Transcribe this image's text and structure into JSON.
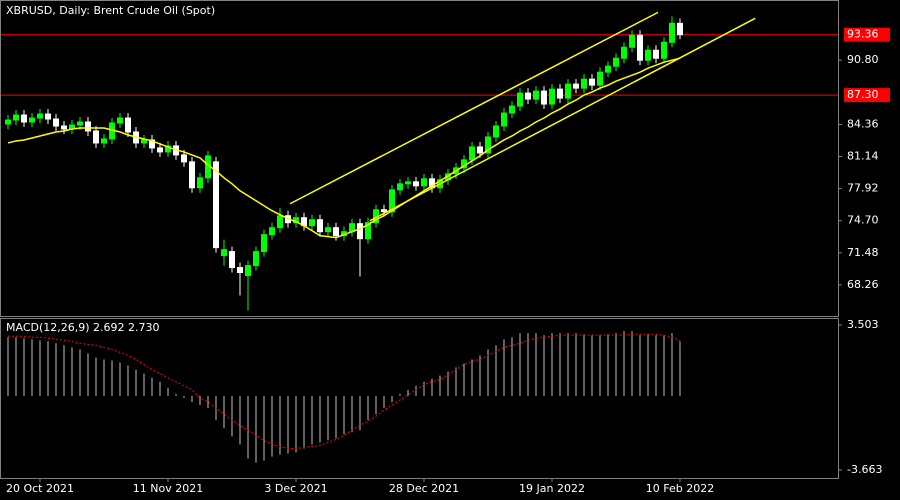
{
  "chart_data": {
    "type": "candlestick",
    "title": "XBRUSD, Daily:  Brent Crude Oil (Spot)",
    "categories": [
      null,
      null,
      null,
      null,
      "20 Oct 2021",
      null,
      null,
      null,
      null,
      null,
      null,
      null,
      null,
      null,
      null,
      null,
      null,
      null,
      null,
      null,
      "11 Nov 2021",
      null,
      null,
      null,
      null,
      null,
      null,
      null,
      null,
      null,
      null,
      null,
      null,
      null,
      null,
      null,
      "3 Dec 2021",
      null,
      null,
      null,
      null,
      null,
      null,
      null,
      null,
      null,
      null,
      null,
      null,
      null,
      null,
      null,
      "28 Dec 2021",
      null,
      null,
      null,
      null,
      null,
      null,
      null,
      null,
      null,
      null,
      null,
      null,
      null,
      null,
      null,
      "19 Jan 2022",
      null,
      null,
      null,
      null,
      null,
      null,
      null,
      null,
      null,
      null,
      null,
      null,
      null,
      null,
      null,
      "10 Feb 2022"
    ],
    "open": [
      84.4,
      84.8,
      85.3,
      84.6,
      85.0,
      85.4,
      84.9,
      84.2,
      83.9,
      84.3,
      84.6,
      83.7,
      82.5,
      82.9,
      84.5,
      85.0,
      83.6,
      82.5,
      82.8,
      82.0,
      81.6,
      82.2,
      81.3,
      80.6,
      78.0,
      79.0,
      80.6,
      71.2,
      71.6,
      70.0,
      69.2,
      70.2,
      71.6,
      73.3,
      74.0,
      75.2,
      74.5,
      75.0,
      74.2,
      74.8,
      73.6,
      74.0,
      73.2,
      73.6,
      74.4,
      72.9,
      74.5,
      75.8,
      75.6,
      77.8,
      78.4,
      78.6,
      78.2,
      78.9,
      78.0,
      78.8,
      79.4,
      80.0,
      80.8,
      82.1,
      81.5,
      83.1,
      84.2,
      85.5,
      86.2,
      87.5,
      86.9,
      87.7,
      86.4,
      87.9,
      87.0,
      88.4,
      88.0,
      88.9,
      88.3,
      89.6,
      90.2,
      91.0,
      92.1,
      93.3,
      90.8,
      91.8,
      91.0,
      92.6,
      94.5
    ],
    "high": [
      85.3,
      85.8,
      85.8,
      85.5,
      85.9,
      85.9,
      85.4,
      84.7,
      84.8,
      85.1,
      85.1,
      84.2,
      83.4,
      85.0,
      85.5,
      85.5,
      84.1,
      83.3,
      83.3,
      82.5,
      82.7,
      82.7,
      81.8,
      81.1,
      79.5,
      81.7,
      81.1,
      72.8,
      72.1,
      70.5,
      70.7,
      72.1,
      73.8,
      74.5,
      76.0,
      75.7,
      75.5,
      75.5,
      75.3,
      75.3,
      74.5,
      74.5,
      74.1,
      74.9,
      74.9,
      75.0,
      76.3,
      76.3,
      78.3,
      78.9,
      79.1,
      79.1,
      79.4,
      79.4,
      79.3,
      79.9,
      80.5,
      81.3,
      82.6,
      82.6,
      83.6,
      84.7,
      86.0,
      86.7,
      88.0,
      88.0,
      88.2,
      88.2,
      88.4,
      88.4,
      88.9,
      88.9,
      89.4,
      89.4,
      90.1,
      90.7,
      91.5,
      92.6,
      93.8,
      93.8,
      92.3,
      92.3,
      93.1,
      95.2,
      95.0
    ],
    "low": [
      83.9,
      84.3,
      84.1,
      84.1,
      84.5,
      84.4,
      83.7,
      83.4,
      83.4,
      83.8,
      83.2,
      82.0,
      82.0,
      82.4,
      84.0,
      83.1,
      82.0,
      82.0,
      81.5,
      81.1,
      81.1,
      80.8,
      80.1,
      77.5,
      77.5,
      78.5,
      71.5,
      70.2,
      69.5,
      67.2,
      65.7,
      69.7,
      71.1,
      72.8,
      73.5,
      74.0,
      74.0,
      73.7,
      73.7,
      73.1,
      73.1,
      72.7,
      72.7,
      73.1,
      69.1,
      72.4,
      74.0,
      75.1,
      75.1,
      77.3,
      77.9,
      77.7,
      77.7,
      77.5,
      77.5,
      78.3,
      78.9,
      79.5,
      80.3,
      81.0,
      81.0,
      82.6,
      83.7,
      85.0,
      85.7,
      86.4,
      86.4,
      85.9,
      85.9,
      86.5,
      86.5,
      87.5,
      87.5,
      87.8,
      87.8,
      89.1,
      89.7,
      90.5,
      91.6,
      90.3,
      90.3,
      90.5,
      90.5,
      92.1,
      92.9
    ],
    "close": [
      84.8,
      85.3,
      84.6,
      85.0,
      85.4,
      84.9,
      84.2,
      83.9,
      84.3,
      84.6,
      83.7,
      82.5,
      82.9,
      84.5,
      85.0,
      83.6,
      82.5,
      82.8,
      82.0,
      81.6,
      82.2,
      81.3,
      80.6,
      78.0,
      79.0,
      81.2,
      72.0,
      71.8,
      70.0,
      69.5,
      70.2,
      71.6,
      73.3,
      74.0,
      75.2,
      74.5,
      75.0,
      74.2,
      74.8,
      73.6,
      74.0,
      73.2,
      73.6,
      74.4,
      72.9,
      74.5,
      75.8,
      75.6,
      77.8,
      78.4,
      78.6,
      78.2,
      78.9,
      78.0,
      78.8,
      79.4,
      80.0,
      80.8,
      82.1,
      81.5,
      83.1,
      84.2,
      85.5,
      86.2,
      87.5,
      86.9,
      87.7,
      86.4,
      87.9,
      87.0,
      88.4,
      88.0,
      88.9,
      88.3,
      89.6,
      90.2,
      91.0,
      92.1,
      93.3,
      90.8,
      91.8,
      91.0,
      92.6,
      94.5,
      93.36
    ],
    "up_color": "#00ff00",
    "down_color": "#ffffff",
    "ylim": [
      65.14,
      96.84
    ],
    "yticks": [
      68.26,
      71.48,
      {
        "value": 74.7,
        "label": "74.70"
      },
      77.92,
      81.14,
      84.36,
      {
        "value": 90.8,
        "label": "90.80"
      }
    ],
    "levels": [
      93.36,
      {
        "value": 87.3,
        "label": "87.30"
      }
    ],
    "level_color": "#ff0000",
    "ma": {
      "color": "#ffff00",
      "values": [
        82.5,
        82.7,
        82.8,
        83.0,
        83.2,
        83.4,
        83.6,
        83.7,
        83.9,
        84.0,
        84.0,
        84.0,
        84.0,
        83.8,
        83.6,
        83.3,
        83.1,
        82.9,
        82.7,
        82.4,
        82.1,
        81.8,
        81.6,
        81.3,
        81.0,
        80.3,
        79.7,
        79.0,
        78.4,
        77.7,
        77.2,
        76.7,
        76.2,
        75.7,
        75.3,
        74.9,
        74.6,
        74.2,
        73.7,
        73.2,
        73.1,
        73.0,
        73.3,
        73.6,
        73.9,
        74.3,
        74.8,
        75.2,
        75.7,
        76.2,
        76.7,
        77.2,
        77.7,
        78.2,
        78.7,
        79.2,
        79.7,
        80.2,
        80.7,
        81.2,
        81.8,
        82.3,
        82.8,
        83.2,
        83.7,
        84.1,
        84.6,
        85.0,
        85.5,
        85.9,
        86.4,
        86.8,
        87.3,
        87.6,
        88.0,
        88.3,
        88.7,
        89.0,
        89.3,
        89.6,
        90.0,
        90.3,
        90.6,
        90.8,
        91.0
      ]
    },
    "trendlines": [
      {
        "color": "#ffff00",
        "x": [
          35.25,
          81.25
        ],
        "y": [
          76.4,
          95.6
        ]
      },
      {
        "color": "#ffff00",
        "x": [
          45.25,
          93.4
        ],
        "y": [
          74.7,
          95.0
        ]
      }
    ],
    "macd": {
      "title": "MACD(12,26,9) 2.692 2.730",
      "ylim": [
        -4.058,
        3.849
      ],
      "yticks": [
        3.503,
        -3.663
      ],
      "histogram": {
        "color": "#c0c0c0",
        "values": [
          2.9,
          2.9,
          2.85,
          2.8,
          2.75,
          2.7,
          2.6,
          2.5,
          2.4,
          2.3,
          2.1,
          1.9,
          1.8,
          1.75,
          1.65,
          1.5,
          1.3,
          1.1,
          0.9,
          0.7,
          0.4,
          0.1,
          -0.1,
          -0.3,
          -0.45,
          -0.6,
          -1.2,
          -1.6,
          -2.0,
          -2.4,
          -3.1,
          -3.3,
          -3.2,
          -3.0,
          -2.9,
          -2.85,
          -2.8,
          -2.6,
          -2.4,
          -2.3,
          -2.2,
          -2.1,
          -1.9,
          -1.8,
          -1.7,
          -1.2,
          -0.9,
          -0.6,
          -0.3,
          0.1,
          0.3,
          0.5,
          0.7,
          0.85,
          1.0,
          1.2,
          1.4,
          1.6,
          1.8,
          2.0,
          2.3,
          2.5,
          2.8,
          2.9,
          3.1,
          3.1,
          3.1,
          3.0,
          3.1,
          3.1,
          3.1,
          3.1,
          3.05,
          3.0,
          3.0,
          3.05,
          3.1,
          3.2,
          3.2,
          3.0,
          3.05,
          3.0,
          3.0,
          3.1,
          2.692
        ]
      },
      "signal": {
        "color": "#ff0000",
        "values": [
          2.95,
          2.95,
          2.95,
          2.9,
          2.9,
          2.85,
          2.8,
          2.75,
          2.7,
          2.6,
          2.55,
          2.5,
          2.4,
          2.3,
          2.15,
          2.0,
          1.8,
          1.55,
          1.3,
          1.1,
          0.9,
          0.7,
          0.5,
          0.3,
          -0.1,
          -0.3,
          -0.6,
          -0.9,
          -1.2,
          -1.45,
          -1.7,
          -1.95,
          -2.2,
          -2.4,
          -2.5,
          -2.6,
          -2.6,
          -2.55,
          -2.5,
          -2.45,
          -2.3,
          -2.15,
          -1.95,
          -1.7,
          -1.45,
          -1.25,
          -1.0,
          -0.7,
          -0.45,
          -0.2,
          0.05,
          0.3,
          0.55,
          0.7,
          0.8,
          1.05,
          1.3,
          1.55,
          1.7,
          1.8,
          2.0,
          2.2,
          2.4,
          2.5,
          2.6,
          2.75,
          2.85,
          2.9,
          2.95,
          3.0,
          3.0,
          3.0,
          3.0,
          3.0,
          3.0,
          3.0,
          3.0,
          3.0,
          3.05,
          3.05,
          3.05,
          3.05,
          3.0,
          2.9,
          2.73
        ]
      }
    }
  }
}
